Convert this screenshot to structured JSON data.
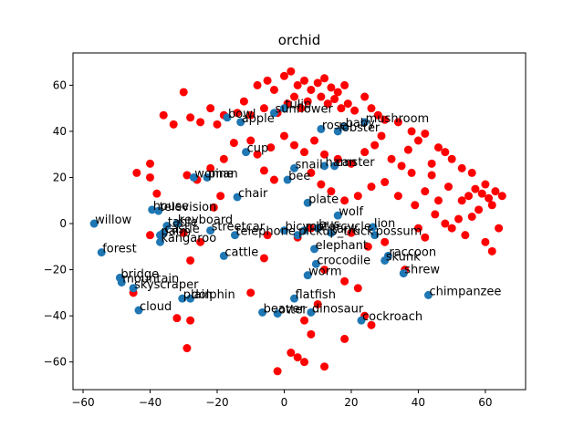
{
  "chart_data": {
    "type": "scatter",
    "title": "orchid",
    "xlim": [
      -63,
      72
    ],
    "ylim": [
      -72,
      74
    ],
    "xticks": [
      {
        "value": -60,
        "label": "−60"
      },
      {
        "value": -40,
        "label": "−40"
      },
      {
        "value": -20,
        "label": "−20"
      },
      0,
      20,
      40,
      60
    ],
    "yticks": [
      {
        "value": -60,
        "label": "−60"
      },
      {
        "value": -40,
        "label": "−40"
      },
      {
        "value": -20,
        "label": "−20"
      },
      0,
      20,
      40,
      60
    ],
    "series": [
      {
        "color": "#ff0000",
        "x": [
          -8,
          -5,
          -3,
          0,
          2,
          4,
          6,
          8,
          10,
          12,
          14,
          16,
          18,
          11,
          13,
          15,
          17,
          19,
          21,
          7,
          5,
          3,
          1,
          -2,
          -6,
          -10,
          -12,
          -14,
          -18,
          -22,
          -30,
          -28,
          24,
          26,
          28,
          30,
          34,
          38,
          40,
          42,
          46,
          48,
          -20,
          -25,
          -36,
          -33,
          -15,
          -10,
          -8,
          -4,
          0,
          3,
          6,
          9,
          12,
          16,
          20,
          24,
          27,
          32,
          35,
          38,
          44,
          50,
          53,
          56,
          -22,
          -18,
          -26,
          -29,
          -40,
          -40,
          -44,
          -38,
          -19,
          -21,
          -6,
          -3,
          8,
          11,
          14,
          18,
          22,
          26,
          30,
          34,
          39,
          42,
          46,
          49,
          44,
          37,
          29,
          53,
          55,
          57,
          59,
          61,
          63,
          65,
          60,
          62,
          58,
          56,
          52,
          48,
          45,
          40,
          42,
          50,
          60,
          62,
          64,
          54,
          -5,
          4,
          8,
          20,
          25,
          30,
          12,
          18,
          22,
          10,
          6,
          8,
          2,
          4,
          -2,
          6,
          12,
          18,
          26,
          24,
          -28,
          -32,
          -29,
          -10,
          -6,
          -25,
          -30,
          -45,
          -28,
          36,
          -40
        ],
        "values": [
          60,
          62,
          58,
          64,
          66,
          60,
          62,
          58,
          61,
          63,
          59,
          57,
          60,
          55,
          52,
          54,
          50,
          52,
          49,
          53,
          50,
          55,
          52,
          48,
          50,
          47,
          53,
          48,
          47,
          50,
          57,
          46,
          55,
          50,
          47,
          45,
          44,
          40,
          36,
          39,
          33,
          31,
          43,
          44,
          47,
          43,
          35,
          36,
          30,
          33,
          38,
          34,
          31,
          36,
          30,
          28,
          26,
          31,
          34,
          28,
          25,
          22,
          26,
          28,
          24,
          22,
          24,
          28,
          19,
          21,
          26,
          20,
          22,
          13,
          12,
          7,
          23,
          19,
          22,
          17,
          14,
          10,
          12,
          16,
          18,
          12,
          8,
          14,
          10,
          16,
          21,
          32,
          38,
          10,
          12,
          15,
          13,
          11,
          14,
          12,
          17,
          8,
          6,
          3,
          2,
          0,
          4,
          -2,
          -6,
          -2,
          -8,
          -12,
          -2,
          -5,
          -5,
          -6,
          -2,
          -4,
          -10,
          -8,
          -20,
          -25,
          -28,
          -35,
          -42,
          -48,
          -56,
          -58,
          -64,
          -60,
          -62,
          -50,
          -44,
          -40,
          -42,
          -41,
          -54,
          -30,
          -15,
          -8,
          -4,
          -30,
          -16,
          -20,
          -5
        ]
      },
      {
        "color": "#1f77b4",
        "labels": [
          "willow",
          "house",
          "television",
          "table",
          "keyboard",
          "castle",
          "palm",
          "kangaroo",
          "streetcar",
          "telephone",
          "forest",
          "bridge",
          "mountain",
          "skyscraper",
          "cloud",
          "plain",
          "dolphin",
          "cattle",
          "chair",
          "cup",
          "woman",
          "pine",
          "bee",
          "snail",
          "plate",
          "wolf",
          "lion",
          "possum",
          "raccoon",
          "skunk",
          "shrew",
          "chimpanzee",
          "crocodile",
          "worm",
          "elephant",
          "flatfish",
          "dinosaur",
          "beaver",
          "otter",
          "cockroach",
          "mushroom",
          "rose",
          "lobster",
          "baby",
          "bowl",
          "apple",
          "sunflower",
          "tulip",
          "bicycle",
          "motorcycle",
          "bus",
          "tank",
          "pickup_truck",
          "hamster",
          "can"
        ],
        "x": [
          -56.7,
          -39.4,
          -37.5,
          -35,
          -32,
          -36,
          -37,
          -37,
          -22,
          -14.7,
          -54.5,
          -49,
          -48.5,
          -45,
          -43.4,
          -30.4,
          -28,
          -18,
          -14,
          -11.4,
          -27,
          -23,
          1,
          3,
          7,
          16,
          26.5,
          27,
          31,
          30,
          35.6,
          43,
          9.5,
          7,
          9,
          3,
          8,
          -6.5,
          -2,
          23,
          24,
          11,
          16,
          18,
          -17,
          -13,
          -3,
          0,
          0,
          6,
          10,
          14,
          4,
          12,
          15
        ],
        "values": [
          0,
          6,
          5.5,
          -1,
          0,
          -4,
          -5,
          -8,
          -3,
          -5,
          -12.5,
          -23.5,
          -25.5,
          -28,
          -37.6,
          -32.5,
          -32.5,
          -14,
          11.5,
          31,
          20,
          20,
          19,
          24,
          9,
          3.5,
          -1.5,
          -5,
          -14,
          -16,
          -21.6,
          -31,
          -17.5,
          -22.4,
          -11,
          -32.5,
          -38.5,
          -38.5,
          -39,
          -42,
          44,
          41,
          40,
          42,
          46,
          44,
          48,
          50,
          -3,
          -3,
          -2,
          -4,
          -5,
          25,
          25
        ]
      }
    ]
  }
}
